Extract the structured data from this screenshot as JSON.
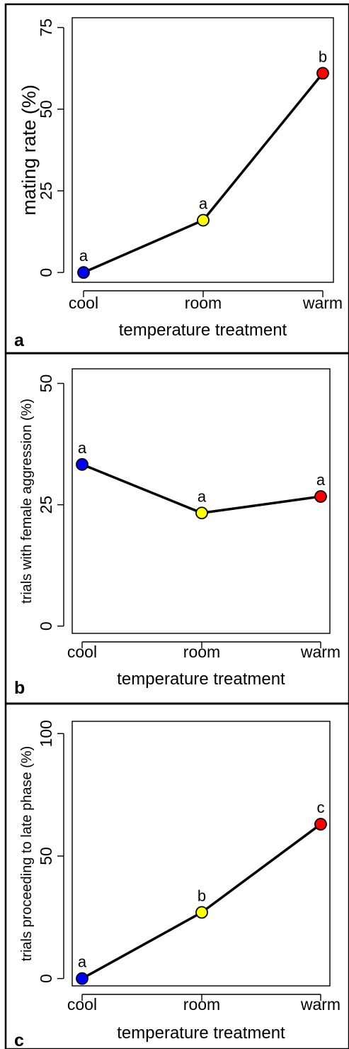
{
  "chart_data": [
    {
      "panel": "a",
      "type": "line",
      "xlabel": "temperature treatment",
      "ylabel": "mating rate (%)",
      "categories": [
        "cool",
        "room",
        "warm"
      ],
      "values": [
        0,
        16,
        61
      ],
      "point_colors": [
        "#0000ff",
        "#ffff00",
        "#ff0000"
      ],
      "point_labels": [
        "a",
        "a",
        "b"
      ],
      "yticks": [
        0,
        25,
        50,
        75
      ],
      "ylim": [
        -3,
        78
      ],
      "grid": false
    },
    {
      "panel": "b",
      "type": "line",
      "xlabel": "temperature treatment",
      "ylabel": "trials with female aggression (%)",
      "categories": [
        "cool",
        "room",
        "warm"
      ],
      "values": [
        33.3,
        23.3,
        26.7
      ],
      "point_colors": [
        "#0000ff",
        "#ffff00",
        "#ff0000"
      ],
      "point_labels": [
        "a",
        "a",
        "a"
      ],
      "yticks": [
        0,
        25,
        50
      ],
      "ylim": [
        -1.5,
        53
      ],
      "grid": false
    },
    {
      "panel": "c",
      "type": "line",
      "xlabel": "temperature treatment",
      "ylabel": "trials proceeding to late phase (%)",
      "categories": [
        "cool",
        "room",
        "warm"
      ],
      "values": [
        0,
        27,
        63
      ],
      "point_colors": [
        "#0000ff",
        "#ffff00",
        "#ff0000"
      ],
      "point_labels": [
        "a",
        "b",
        "c"
      ],
      "yticks": [
        0,
        50,
        100
      ],
      "ylim": [
        -3,
        105
      ],
      "grid": false
    }
  ]
}
